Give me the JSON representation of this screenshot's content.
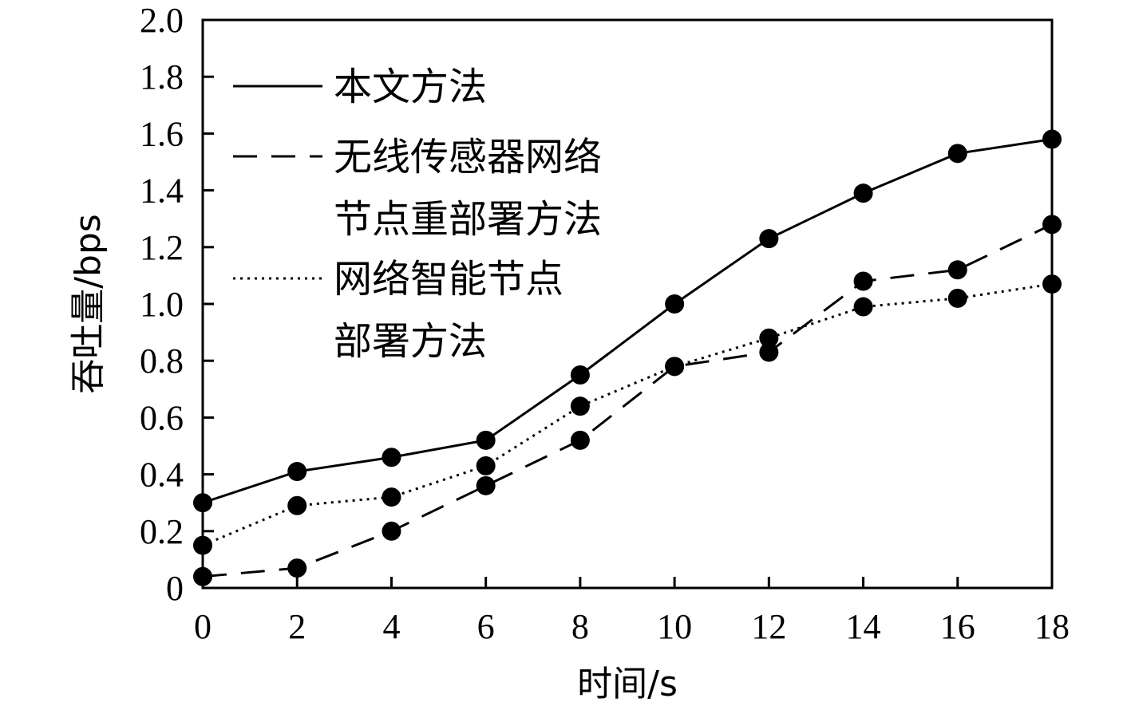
{
  "chart_data": {
    "type": "line",
    "title": "",
    "xlabel": "时间/s",
    "ylabel": "吞吐量/bps",
    "x": [
      0,
      2,
      4,
      6,
      8,
      10,
      12,
      14,
      16,
      18
    ],
    "xlim": [
      0,
      18
    ],
    "ylim": [
      0,
      2.0
    ],
    "xticks": [
      "0",
      "2",
      "4",
      "6",
      "8",
      "10",
      "12",
      "14",
      "16",
      "18"
    ],
    "yticks": [
      "0",
      "0.2",
      "0.4",
      "0.6",
      "0.8",
      "1.0",
      "1.2",
      "1.4",
      "1.6",
      "1.8",
      "2.0"
    ],
    "grid": false,
    "legend_position": "top-left",
    "series": [
      {
        "name": "本文方法",
        "name_lines": [
          "本文方法"
        ],
        "style": "solid",
        "values": [
          0.3,
          0.41,
          0.46,
          0.52,
          0.75,
          1.0,
          1.23,
          1.39,
          1.53,
          1.58
        ]
      },
      {
        "name": "无线传感器网络节点重部署方法",
        "name_lines": [
          "无线传感器网络",
          "节点重部署方法"
        ],
        "style": "dashed",
        "values": [
          0.04,
          0.07,
          0.2,
          0.36,
          0.52,
          0.78,
          0.83,
          1.08,
          1.12,
          1.28
        ]
      },
      {
        "name": "网络智能节点部署方法",
        "name_lines": [
          "网络智能节点",
          "部署方法"
        ],
        "style": "dotted",
        "values": [
          0.15,
          0.29,
          0.32,
          0.43,
          0.64,
          0.78,
          0.88,
          0.99,
          1.02,
          1.07
        ]
      }
    ],
    "colors": {
      "line": "#000000",
      "marker": "#000000",
      "background": "#ffffff"
    }
  }
}
